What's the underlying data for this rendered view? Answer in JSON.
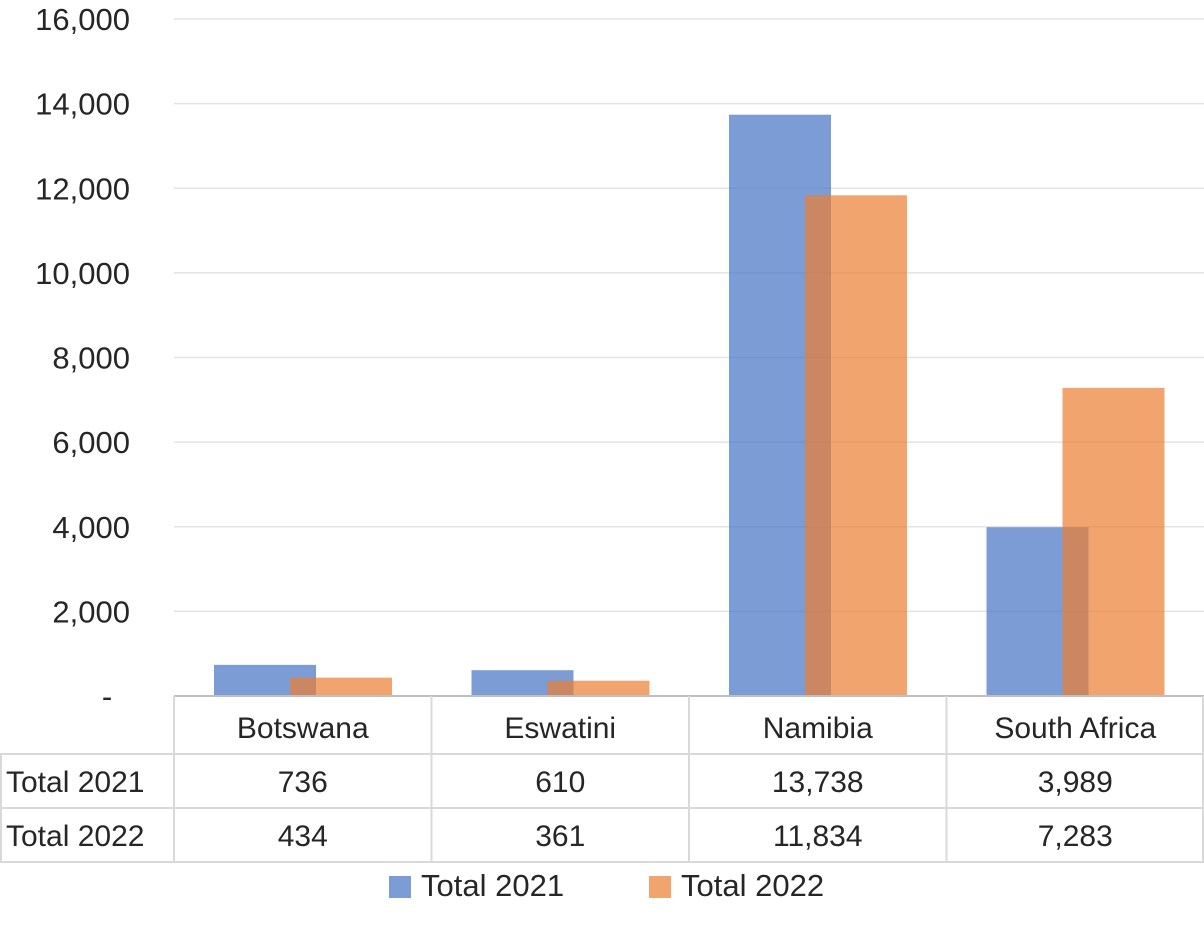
{
  "chart_data": {
    "type": "bar",
    "categories": [
      "Botswana",
      "Eswatini",
      "Namibia",
      "South Africa"
    ],
    "series": [
      {
        "name": "Total 2021",
        "values": [
          736,
          610,
          13738,
          3989
        ],
        "color": "#4472C4",
        "display_values": [
          "736",
          "610",
          "13,738",
          "3,989"
        ]
      },
      {
        "name": "Total 2022",
        "values": [
          434,
          361,
          11834,
          7283
        ],
        "color": "#ED7D31",
        "display_values": [
          "434",
          "361",
          "11,834",
          "7,283"
        ]
      }
    ],
    "ylim": [
      0,
      16000
    ],
    "yticks": [
      {
        "value": 0,
        "label": "-"
      },
      {
        "value": 2000,
        "label": "2,000"
      },
      {
        "value": 4000,
        "label": "4,000"
      },
      {
        "value": 6000,
        "label": "6,000"
      },
      {
        "value": 8000,
        "label": "8,000"
      },
      {
        "value": 10000,
        "label": "10,000"
      },
      {
        "value": 12000,
        "label": "12,000"
      },
      {
        "value": 14000,
        "label": "14,000"
      },
      {
        "value": 16000,
        "label": "16,000"
      }
    ],
    "title": "",
    "xlabel": "",
    "ylabel": "",
    "grid": true,
    "legend": "bottom",
    "data_table": true
  }
}
